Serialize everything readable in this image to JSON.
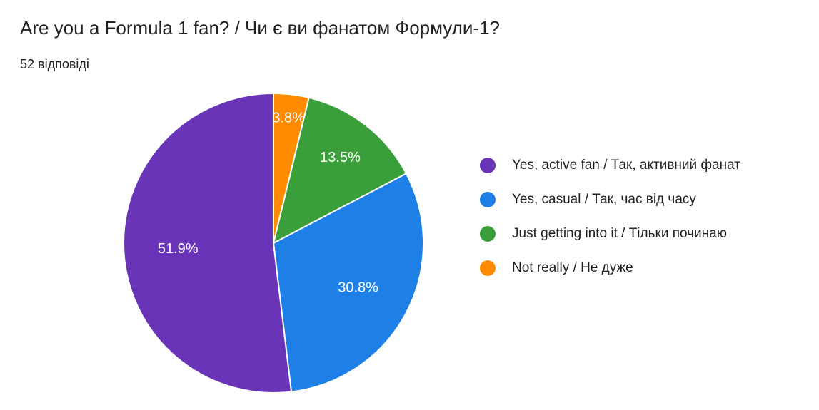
{
  "title": "Are you a Formula 1 fan? / Чи є ви фанатом Формули-1?",
  "subtitle": "52 відповіді",
  "chart_data": {
    "type": "pie",
    "title": "Are you a Formula 1 fan? / Чи є ви фанатом Формули-1?",
    "total_responses": 52,
    "start": "top",
    "direction": "clockwise",
    "legend_position": "right",
    "slices": [
      {
        "label": "Not really / Не дуже",
        "value": 3.8,
        "color": "#ff8c00",
        "display": "3.8%"
      },
      {
        "label": "Just getting into it / Тільки починаю",
        "value": 13.5,
        "color": "#3a9f3a",
        "display": "13.5%"
      },
      {
        "label": "Yes, casual / Так, час від часу",
        "value": 30.8,
        "color": "#1e7fe6",
        "display": "30.8%"
      },
      {
        "label": "Yes, active fan / Так, активний фанат",
        "value": 51.9,
        "color": "#6a34b8",
        "display": "51.9%"
      }
    ],
    "legend": [
      {
        "label": "Yes, active fan / Так, активний фанат",
        "color": "#6a34b8"
      },
      {
        "label": "Yes, casual / Так, час від часу",
        "color": "#1e7fe6"
      },
      {
        "label": "Just getting into it / Тільки починаю",
        "color": "#3a9f3a"
      },
      {
        "label": "Not really / Не дуже",
        "color": "#ff8c00"
      }
    ]
  }
}
